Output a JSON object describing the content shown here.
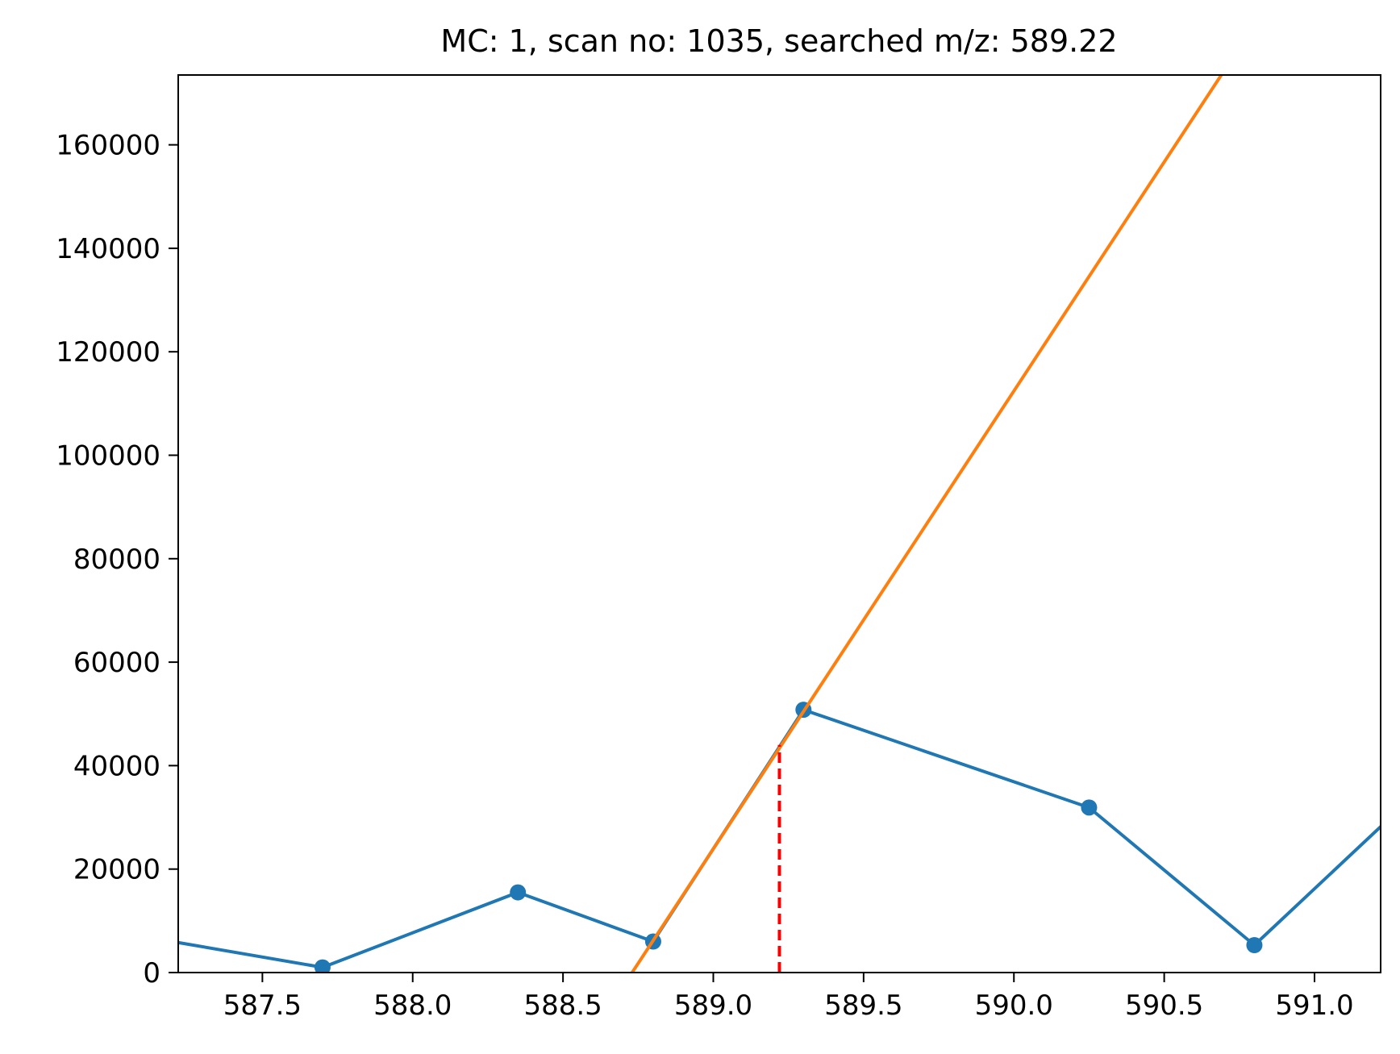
{
  "chart_data": {
    "type": "line",
    "title": "MC: 1, scan no: 1035, searched m/z: 589.22",
    "xlabel": "",
    "ylabel": "",
    "xlim": [
      587.22,
      591.22
    ],
    "ylim": [
      0,
      173500
    ],
    "x_ticks": [
      587.5,
      588.0,
      588.5,
      589.0,
      589.5,
      590.0,
      590.5,
      591.0
    ],
    "x_tick_labels": [
      "587.5",
      "588.0",
      "588.5",
      "589.0",
      "589.5",
      "590.0",
      "590.5",
      "591.0"
    ],
    "y_ticks": [
      0,
      20000,
      40000,
      60000,
      80000,
      100000,
      120000,
      140000,
      160000
    ],
    "y_tick_labels": [
      "0",
      "20000",
      "40000",
      "60000",
      "80000",
      "100000",
      "120000",
      "140000",
      "160000"
    ],
    "grid": false,
    "series": [
      {
        "color": "#1f77b4",
        "markers": true,
        "x": [
          587.0,
          587.7,
          588.35,
          588.8,
          589.3,
          590.25,
          590.8,
          591.4
        ],
        "y": [
          8000,
          1000,
          15500,
          6000,
          50800,
          31900,
          5300,
          38000
        ]
      },
      {
        "color": "#ff7f0e",
        "markers": false,
        "x": [
          588.73,
          590.69
        ],
        "y": [
          0,
          173500
        ]
      }
    ],
    "vline": {
      "x": 589.22,
      "y_top": 44000,
      "color": "#ff0000",
      "style": "dashed"
    }
  }
}
